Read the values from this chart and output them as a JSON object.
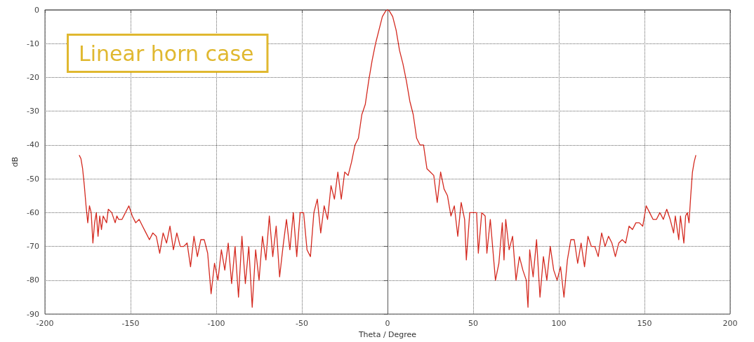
{
  "chart_data": {
    "type": "line",
    "xlabel": "Theta / Degree",
    "ylabel": "dB",
    "annotations": [
      "Linear horn case"
    ],
    "xlim": [
      -200,
      200
    ],
    "xticks": [
      -200,
      -150,
      -100,
      -50,
      0,
      50,
      100,
      150,
      200
    ],
    "ylim": [
      -90,
      0
    ],
    "yticks": [
      -90,
      -80,
      -70,
      -60,
      -50,
      -40,
      -30,
      -20,
      -10,
      0
    ],
    "grid": true,
    "marker": "none",
    "line_style": "solid",
    "series": [
      {
        "color": "#d42a20",
        "x": [
          -180,
          -179,
          -178,
          -177,
          -176,
          -175,
          -174,
          -173,
          -172,
          -171,
          -170,
          -169,
          -168,
          -167,
          -166,
          -164,
          -163,
          -161,
          -159,
          -158,
          -157,
          -155,
          -153,
          -151,
          -149,
          -147,
          -145,
          -143,
          -141,
          -139,
          -137,
          -135,
          -133,
          -131,
          -129,
          -127,
          -125,
          -123,
          -121,
          -119,
          -117,
          -115,
          -113,
          -111,
          -109,
          -107,
          -105,
          -103,
          -101,
          -99,
          -97,
          -95,
          -93,
          -91,
          -89,
          -87,
          -85,
          -83,
          -81,
          -79,
          -77,
          -75,
          -73,
          -71,
          -69,
          -67,
          -65,
          -63,
          -61,
          -59,
          -57,
          -55,
          -53,
          -51,
          -49,
          -47,
          -45,
          -43,
          -41,
          -39,
          -37,
          -35,
          -33,
          -31,
          -29,
          -27,
          -25,
          -23,
          -21,
          -19,
          -17,
          -15,
          -13,
          -11,
          -9,
          -7,
          -5,
          -3,
          -1,
          0,
          1,
          3,
          5,
          7,
          9,
          11,
          13,
          15,
          17,
          19,
          21,
          23,
          25,
          27,
          29,
          31,
          33,
          35,
          37,
          39,
          41,
          43,
          45,
          46,
          48,
          50,
          52,
          53,
          55,
          57,
          58,
          60,
          63,
          65,
          67,
          68,
          69,
          71,
          73,
          75,
          77,
          79,
          81,
          82,
          83,
          85,
          87,
          89,
          91,
          93,
          95,
          97,
          99,
          101,
          103,
          105,
          107,
          109,
          111,
          113,
          115,
          117,
          119,
          121,
          123,
          125,
          127,
          129,
          131,
          133,
          135,
          137,
          139,
          141,
          143,
          145,
          147,
          149,
          151,
          153,
          155,
          157,
          159,
          161,
          163,
          165,
          167,
          168,
          170,
          171,
          173,
          174,
          175,
          176,
          177,
          178,
          179,
          180
        ],
        "values": [
          -43,
          -44,
          -47,
          -52,
          -58,
          -63,
          -58,
          -60,
          -69,
          -63,
          -60,
          -67,
          -61,
          -65,
          -61,
          -63,
          -59,
          -60,
          -63,
          -61,
          -62,
          -62,
          -60,
          -58,
          -61,
          -63,
          -62,
          -64,
          -66,
          -68,
          -66,
          -67,
          -72,
          -66,
          -69,
          -64,
          -71,
          -66,
          -70,
          -70,
          -69,
          -76,
          -67,
          -73,
          -68,
          -68,
          -72,
          -84,
          -75,
          -80,
          -71,
          -77,
          -69,
          -81,
          -70,
          -85,
          -67,
          -81,
          -70,
          -88,
          -71,
          -80,
          -67,
          -74,
          -61,
          -73,
          -64,
          -79,
          -70,
          -62,
          -71,
          -60,
          -73,
          -60,
          -60,
          -71,
          -73,
          -60,
          -56,
          -66,
          -58,
          -62,
          -52,
          -56,
          -48,
          -56,
          -48,
          -49,
          -45,
          -40,
          -38,
          -31,
          -28,
          -21,
          -15,
          -10,
          -6,
          -2,
          -0.3,
          0,
          -0.3,
          -2,
          -6,
          -12,
          -16,
          -21,
          -27,
          -31,
          -38,
          -40,
          -40,
          -47,
          -48,
          -49,
          -57,
          -48,
          -53,
          -55,
          -61,
          -58,
          -67,
          -57,
          -62,
          -74,
          -60,
          -60,
          -60,
          -72,
          -60,
          -61,
          -72,
          -62,
          -80,
          -75,
          -63,
          -74,
          -62,
          -71,
          -67,
          -80,
          -73,
          -77,
          -80,
          -88,
          -71,
          -79,
          -68,
          -85,
          -73,
          -80,
          -70,
          -77,
          -80,
          -76,
          -85,
          -74,
          -68,
          -68,
          -75,
          -69,
          -76,
          -67,
          -70,
          -70,
          -73,
          -66,
          -70,
          -67,
          -69,
          -73,
          -69,
          -68,
          -69,
          -64,
          -65,
          -63,
          -63,
          -64,
          -58,
          -60,
          -62,
          -62,
          -60,
          -62,
          -59,
          -62,
          -66,
          -61,
          -68,
          -61,
          -69,
          -61,
          -60,
          -63,
          -55,
          -48,
          -45,
          -43
        ]
      }
    ]
  }
}
